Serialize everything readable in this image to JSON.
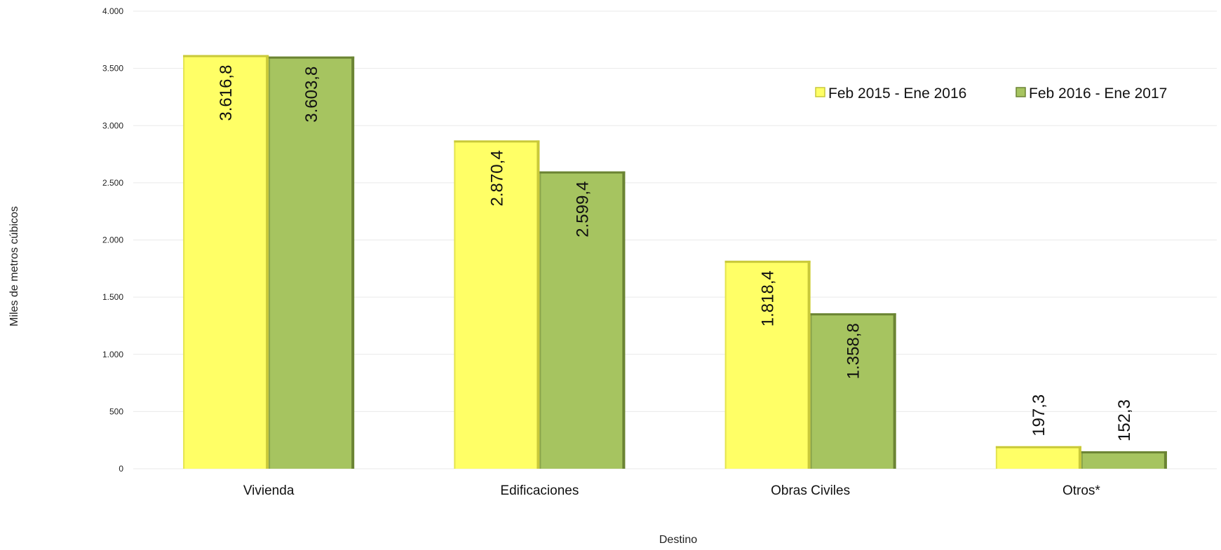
{
  "chart_data": {
    "type": "bar",
    "title": "",
    "xlabel": "Destino",
    "ylabel": "Miles de metros cúbicos",
    "categories": [
      "Vivienda",
      "Edificaciones",
      "Obras Civiles",
      "Otros*"
    ],
    "series": [
      {
        "name": "Feb 2015 - Ene 2016",
        "values": [
          3616.8,
          2870.4,
          1818.4,
          197.3
        ],
        "labels": [
          "3.616,8",
          "2.870,4",
          "1.818,4",
          "197,3"
        ],
        "color": "#ffff66",
        "shade": "#c9c93a"
      },
      {
        "name": "Feb 2016 - Ene 2017",
        "values": [
          3603.8,
          2599.4,
          1358.8,
          152.3
        ],
        "labels": [
          "3.603,8",
          "2.599,4",
          "1.358,8",
          "152,3"
        ],
        "color": "#a6c460",
        "shade": "#6b8434"
      }
    ],
    "ylim": [
      0,
      4000
    ],
    "yticks": [
      0,
      500,
      1000,
      1500,
      2000,
      2500,
      3000,
      3500,
      4000
    ],
    "ytick_labels": [
      "0",
      "500",
      "1.000",
      "1.500",
      "2.000",
      "2.500",
      "3.000",
      "3.500",
      "4.000"
    ],
    "grid": true,
    "legend": "top-right"
  }
}
